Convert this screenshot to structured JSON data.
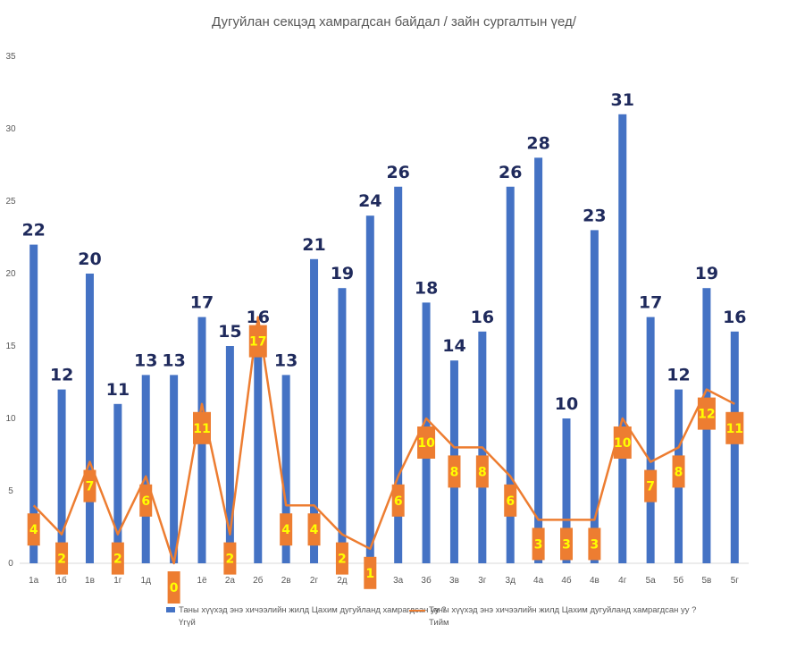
{
  "chart_data": {
    "type": "bar",
    "title": "Дугуйлан секцэд хамрагдсан байдал / зайн сургалтын үед/",
    "categories": [
      "1а",
      "1б",
      "1в",
      "1г",
      "1д",
      "1е",
      "1ё",
      "2а",
      "2б",
      "2в",
      "2г",
      "2д",
      "2е",
      "3а",
      "3б",
      "3в",
      "3г",
      "3д",
      "4а",
      "4б",
      "4в",
      "4г",
      "5а",
      "5б",
      "5в",
      "5г"
    ],
    "ylim": [
      0,
      35
    ],
    "yticks": [
      0,
      5,
      10,
      15,
      20,
      25,
      30,
      35
    ],
    "grid": false,
    "legend_position": "bottom",
    "series": [
      {
        "kind": "bar",
        "name": "Таны хүүхэд энэ хичээлийн жилд Цахим дугуйланд хамрагдсан уу ? Үгүй",
        "color": "#4472c4",
        "values": [
          22,
          12,
          20,
          11,
          13,
          13,
          17,
          15,
          16,
          13,
          21,
          19,
          24,
          26,
          18,
          14,
          16,
          26,
          28,
          10,
          23,
          31,
          17,
          12,
          19,
          16
        ]
      },
      {
        "kind": "line",
        "name": "Таны хүүхэд энэ хичээлийн жилд Цахим дугуйланд хамрагдсан уу ? Тийм",
        "color": "#ed7d31",
        "values": [
          4,
          2,
          7,
          2,
          6,
          0,
          11,
          2,
          17,
          4,
          4,
          2,
          1,
          6,
          10,
          8,
          8,
          6,
          3,
          3,
          3,
          10,
          7,
          8,
          12,
          11
        ]
      }
    ]
  },
  "legend": {
    "bar_line1": "Таны хүүхэд энэ хичээлийн жилд Цахим дугуйланд хамрагдсан уу ?",
    "bar_line2": "Үгүй",
    "line_line1": "Таны хүүхэд энэ хичээлийн жилд Цахим дугуйланд хамрагдсан уу ?",
    "line_line2": "Тийм"
  }
}
